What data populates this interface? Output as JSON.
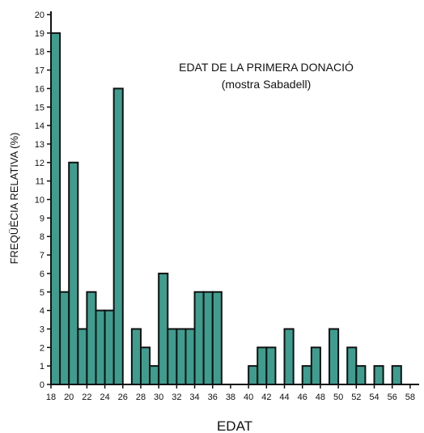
{
  "chart_data": {
    "type": "bar",
    "title": "EDAT DE LA PRIMERA DONACIÓ",
    "subtitle": "(mostra Sabadell)",
    "xlabel": "EDAT",
    "ylabel": "FREQÜÈCIA RELATIVA (%)",
    "ylim": [
      0,
      20
    ],
    "xlim": [
      18,
      59
    ],
    "x_ticks": [
      18,
      20,
      22,
      24,
      26,
      28,
      30,
      32,
      34,
      36,
      38,
      40,
      42,
      44,
      46,
      48,
      50,
      52,
      54,
      56,
      58
    ],
    "y_ticks": [
      0,
      1,
      2,
      3,
      4,
      5,
      6,
      7,
      8,
      9,
      10,
      11,
      12,
      13,
      14,
      15,
      16,
      17,
      18,
      19,
      20
    ],
    "bar_color": "#3f9d8f",
    "categories": [
      18,
      19,
      20,
      21,
      22,
      23,
      24,
      25,
      26,
      27,
      28,
      29,
      30,
      31,
      32,
      33,
      34,
      35,
      36,
      37,
      38,
      39,
      40,
      41,
      42,
      43,
      44,
      45,
      46,
      47,
      48,
      49,
      50,
      51,
      52,
      53,
      54,
      55,
      56,
      57,
      58
    ],
    "values": [
      19,
      5,
      12,
      3,
      5,
      4,
      4,
      16,
      0,
      3,
      2,
      1,
      6,
      3,
      3,
      3,
      5,
      5,
      5,
      0,
      0,
      0,
      1,
      2,
      2,
      0,
      3,
      0,
      1,
      2,
      0,
      3,
      0,
      2,
      1,
      0,
      1,
      0,
      1,
      0,
      0
    ],
    "grid": false
  }
}
